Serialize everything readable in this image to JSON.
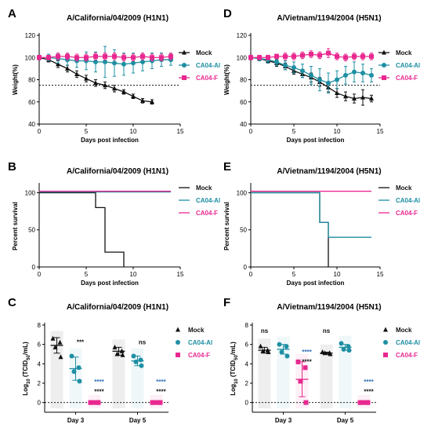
{
  "colors": {
    "mock": "#111111",
    "al": "#1e8fa3",
    "f": "#e8288f",
    "ns": "#000000",
    "al_dark": "#2e6fb7"
  },
  "chart_data": [
    {
      "id": "A",
      "type": "line",
      "letter": "A",
      "title": "A/California/04/2009 (H1N1)",
      "xlabel": "Days post infection",
      "ylabel": "Weight(%)",
      "xlim": [
        0,
        15
      ],
      "ylim": [
        40,
        120
      ],
      "xticks": [
        0,
        5,
        10,
        15
      ],
      "yticks": [
        40,
        60,
        80,
        100,
        120
      ],
      "threshold": 75,
      "series": [
        {
          "name": "Mock",
          "key": "mock",
          "marker": "triangle",
          "x": [
            0,
            1,
            2,
            3,
            4,
            5,
            6,
            7,
            8,
            9,
            10,
            11,
            12
          ],
          "y": [
            100,
            98,
            94,
            90,
            85,
            81,
            77,
            75,
            72,
            69,
            65,
            61,
            60
          ],
          "err": [
            2,
            2,
            3,
            3,
            3,
            3,
            3,
            3,
            3,
            2,
            2,
            2,
            2
          ]
        },
        {
          "name": "CA04-Al",
          "key": "al",
          "marker": "circle",
          "x": [
            0,
            1,
            2,
            3,
            4,
            5,
            6,
            7,
            8,
            9,
            10,
            11,
            12,
            13,
            14
          ],
          "y": [
            100,
            100,
            99,
            98,
            97,
            97,
            96,
            96,
            95,
            94,
            95,
            96,
            97,
            98,
            98
          ],
          "err": [
            2,
            3,
            4,
            5,
            6,
            8,
            9,
            14,
            12,
            10,
            9,
            8,
            7,
            6,
            5
          ]
        },
        {
          "name": "CA04-F",
          "key": "f",
          "marker": "square",
          "x": [
            0,
            1,
            2,
            3,
            4,
            5,
            6,
            7,
            8,
            9,
            10,
            11,
            12,
            13,
            14
          ],
          "y": [
            100,
            100,
            101,
            101,
            100,
            100,
            101,
            101,
            101,
            100,
            100,
            101,
            100,
            100,
            101
          ],
          "err": [
            2,
            2,
            3,
            3,
            3,
            3,
            3,
            3,
            3,
            3,
            3,
            3,
            3,
            3,
            3
          ]
        }
      ]
    },
    {
      "id": "D",
      "type": "line",
      "letter": "D",
      "title": "A/Vietnam/1194/2004 (H5N1)",
      "xlabel": "Days post infection",
      "ylabel": "Weight(%)",
      "xlim": [
        0,
        15
      ],
      "ylim": [
        40,
        120
      ],
      "xticks": [
        0,
        5,
        10,
        15
      ],
      "yticks": [
        40,
        60,
        80,
        100,
        120
      ],
      "threshold": 75,
      "series": [
        {
          "name": "Mock",
          "key": "mock",
          "marker": "triangle",
          "x": [
            0,
            1,
            2,
            3,
            4,
            5,
            6,
            7,
            8,
            9,
            10,
            11,
            12,
            13,
            14
          ],
          "y": [
            100,
            99,
            97,
            95,
            92,
            88,
            85,
            82,
            78,
            73,
            68,
            65,
            63,
            64,
            63
          ],
          "err": [
            2,
            2,
            2,
            3,
            3,
            3,
            3,
            4,
            4,
            4,
            4,
            4,
            4,
            7,
            3
          ]
        },
        {
          "name": "CA04-Al",
          "key": "al",
          "marker": "circle",
          "x": [
            0,
            1,
            2,
            3,
            4,
            5,
            6,
            7,
            8,
            9,
            10,
            11,
            12,
            13,
            14
          ],
          "y": [
            100,
            99,
            98,
            96,
            93,
            91,
            88,
            84,
            80,
            77,
            80,
            84,
            87,
            86,
            84
          ],
          "err": [
            2,
            2,
            3,
            3,
            4,
            5,
            6,
            8,
            10,
            9,
            8,
            8,
            9,
            8,
            6
          ]
        },
        {
          "name": "CA04-F",
          "key": "f",
          "marker": "square",
          "x": [
            0,
            1,
            2,
            3,
            4,
            5,
            6,
            7,
            8,
            9,
            10,
            11,
            12,
            13,
            14
          ],
          "y": [
            100,
            100,
            100,
            101,
            101,
            101,
            102,
            103,
            102,
            104,
            101,
            100,
            101,
            101,
            101
          ],
          "err": [
            2,
            2,
            2,
            2,
            3,
            3,
            3,
            3,
            3,
            4,
            3,
            3,
            3,
            3,
            3
          ]
        }
      ]
    },
    {
      "id": "B",
      "type": "line",
      "step": true,
      "letter": "B",
      "title": "A/California/04/2009 (H1N1)",
      "xlabel": "Days post infection",
      "ylabel": "Percent survival",
      "xlim": [
        0,
        15
      ],
      "ylim": [
        0,
        110
      ],
      "xticks": [
        0,
        5,
        10,
        15
      ],
      "yticks": [
        0,
        50,
        100
      ],
      "series": [
        {
          "name": "Mock",
          "key": "mock",
          "x": [
            0,
            6,
            7,
            9
          ],
          "y": [
            100,
            80,
            20,
            0
          ]
        },
        {
          "name": "CA04-Al",
          "key": "al",
          "x": [
            0,
            14
          ],
          "y": [
            101,
            101
          ]
        },
        {
          "name": "CA04-F",
          "key": "f",
          "x": [
            0,
            14
          ],
          "y": [
            102,
            102
          ]
        }
      ]
    },
    {
      "id": "E",
      "type": "line",
      "step": true,
      "letter": "E",
      "title": "A/Vietnam/1194/2004 (H5N1)",
      "xlabel": "Days post infection",
      "ylabel": "Percent survival",
      "xlim": [
        0,
        15
      ],
      "ylim": [
        0,
        110
      ],
      "xticks": [
        0,
        5,
        10,
        15
      ],
      "yticks": [
        0,
        50,
        100
      ],
      "series": [
        {
          "name": "Mock",
          "key": "mock",
          "x": [
            0,
            8,
            9
          ],
          "y": [
            100,
            60,
            0
          ]
        },
        {
          "name": "CA04-Al",
          "key": "al",
          "x": [
            0,
            8,
            9,
            14
          ],
          "y": [
            100,
            60,
            40,
            40
          ]
        },
        {
          "name": "CA04-F",
          "key": "f",
          "x": [
            0,
            14
          ],
          "y": [
            102,
            102
          ]
        }
      ]
    },
    {
      "id": "C",
      "type": "scatter",
      "letter": "C",
      "title": "A/California/04/2009 (H1N1)",
      "xlabel": "",
      "ylabel": "Log10 (TCID50/mL)",
      "categories": [
        "Day 3",
        "Day 5"
      ],
      "ylim": [
        -1,
        8
      ],
      "yticks": [
        0,
        2,
        4,
        6,
        8
      ],
      "threshold": 0,
      "series": [
        {
          "name": "Mock",
          "key": "mock",
          "marker": "triangle",
          "points": [
            [
              6.6,
              6.2,
              5.7,
              4.7
            ],
            [
              5.7,
              5.3,
              5.0,
              4.9
            ]
          ],
          "mean": [
            5.9,
            5.3
          ],
          "sd": [
            0.8,
            0.4
          ]
        },
        {
          "name": "CA04-Al",
          "key": "al",
          "marker": "circle",
          "points": [
            [
              4.8,
              3.6,
              3.2,
              2.2
            ],
            [
              4.8,
              4.4,
              4.2,
              3.8
            ]
          ],
          "mean": [
            3.5,
            4.3
          ],
          "sd": [
            1.2,
            0.5
          ]
        },
        {
          "name": "CA04-F",
          "key": "f",
          "marker": "square",
          "points": [
            [
              0,
              0,
              0,
              0
            ],
            [
              0,
              0,
              0,
              0
            ]
          ],
          "mean": [
            0,
            0
          ],
          "sd": [
            0,
            0
          ]
        }
      ],
      "annotations": [
        {
          "cat": 0,
          "slot": 1,
          "y": 6.0,
          "text": "***",
          "color": "mock"
        },
        {
          "cat": 0,
          "slot": 2,
          "y": 1.9,
          "text": "****",
          "color": "al_dark"
        },
        {
          "cat": 0,
          "slot": 2,
          "y": 0.9,
          "text": "****",
          "color": "mock"
        },
        {
          "cat": 1,
          "slot": 1,
          "y": 6.0,
          "text": "ns",
          "color": "mock"
        },
        {
          "cat": 1,
          "slot": 2,
          "y": 1.9,
          "text": "****",
          "color": "al_dark"
        },
        {
          "cat": 1,
          "slot": 2,
          "y": 0.9,
          "text": "****",
          "color": "mock"
        }
      ]
    },
    {
      "id": "F",
      "type": "scatter",
      "letter": "F",
      "title": "A/Vietnam/1194/2004 (H5N1)",
      "xlabel": "",
      "ylabel": "Log10 (TCID50/mL)",
      "categories": [
        "Day 3",
        "Day 5"
      ],
      "ylim": [
        -1,
        8
      ],
      "yticks": [
        0,
        2,
        4,
        6,
        8
      ],
      "threshold": 0,
      "series": [
        {
          "name": "Mock",
          "key": "mock",
          "marker": "triangle",
          "points": [
            [
              5.8,
              5.4,
              5.3,
              5.2
            ],
            [
              5.2,
              5.1,
              5.1,
              5.0
            ]
          ],
          "mean": [
            5.4,
            5.1
          ],
          "sd": [
            0.3,
            0.1
          ]
        },
        {
          "name": "CA04-Al",
          "key": "al",
          "marker": "circle",
          "points": [
            [
              6.0,
              5.8,
              5.2,
              4.8
            ],
            [
              6.1,
              5.8,
              5.5,
              5.4
            ]
          ],
          "mean": [
            5.5,
            5.7
          ],
          "sd": [
            0.5,
            0.3
          ]
        },
        {
          "name": "CA04-F",
          "key": "f",
          "marker": "square",
          "points": [
            [
              4.2,
              3.6,
              2.2,
              0
            ],
            [
              0,
              0,
              0,
              0
            ]
          ],
          "mean": [
            2.4,
            0
          ],
          "sd": [
            1.8,
            0
          ]
        }
      ],
      "annotations": [
        {
          "cat": 0,
          "slot": 0,
          "y": 7.2,
          "text": "ns",
          "color": "mock"
        },
        {
          "cat": 0,
          "slot": 2,
          "y": 5.0,
          "text": "****",
          "color": "al_dark"
        },
        {
          "cat": 0,
          "slot": 2,
          "y": 4.0,
          "text": "****",
          "color": "mock"
        },
        {
          "cat": 1,
          "slot": 0,
          "y": 7.2,
          "text": "ns",
          "color": "mock"
        },
        {
          "cat": 1,
          "slot": 2,
          "y": 1.9,
          "text": "****",
          "color": "al_dark"
        },
        {
          "cat": 1,
          "slot": 2,
          "y": 0.9,
          "text": "****",
          "color": "mock"
        }
      ]
    }
  ]
}
